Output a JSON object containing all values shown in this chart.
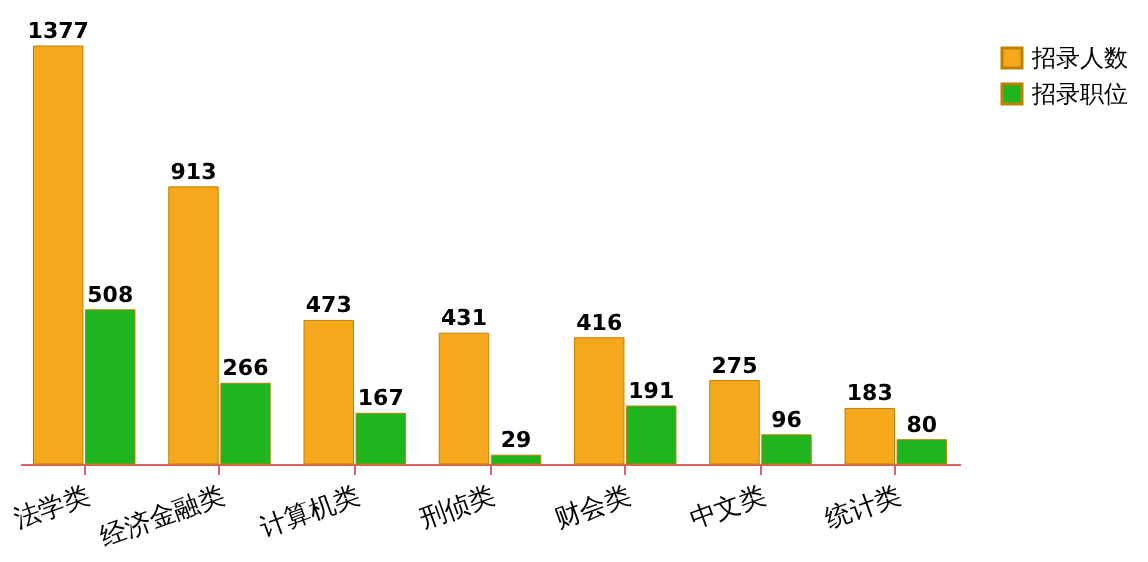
{
  "chart_data": {
    "type": "bar",
    "categories": [
      "法学类",
      "经济金融类",
      "计算机类",
      "刑侦类",
      "财会类",
      "中文类",
      "统计类"
    ],
    "series": [
      {
        "name": "招录人数",
        "color": "#f5a81c",
        "values": [
          1377,
          913,
          473,
          431,
          416,
          275,
          183
        ]
      },
      {
        "name": "招录职位",
        "color": "#1fb51f",
        "values": [
          508,
          266,
          167,
          29,
          191,
          96,
          80
        ]
      }
    ],
    "data_labels": true,
    "legend": "right",
    "tick_labels": "x"
  }
}
